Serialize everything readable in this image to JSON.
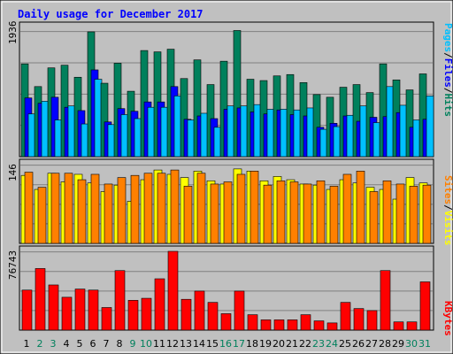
{
  "chart_data": [
    {
      "type": "bar",
      "title": "Daily usage for December 2017",
      "categories": [
        "1",
        "2",
        "3",
        "4",
        "5",
        "6",
        "7",
        "8",
        "9",
        "10",
        "11",
        "12",
        "13",
        "14",
        "15",
        "16",
        "17",
        "18",
        "19",
        "20",
        "21",
        "22",
        "23",
        "24",
        "25",
        "26",
        "27",
        "28",
        "29",
        "30",
        "31"
      ],
      "weekend_days": [
        "2",
        "3",
        "9",
        "10",
        "16",
        "17",
        "23",
        "24",
        "30",
        "31"
      ],
      "ylim": [
        0,
        1936
      ],
      "max_label": "1936",
      "series": [
        {
          "name": "Hits",
          "color": "#00805c",
          "values": [
            1390,
            1050,
            1330,
            1370,
            1190,
            1870,
            1100,
            1400,
            980,
            1590,
            1570,
            1610,
            1170,
            1450,
            1080,
            1430,
            1890,
            1160,
            1140,
            1210,
            1230,
            1110,
            930,
            890,
            1040,
            1080,
            960,
            1390,
            1150,
            1000,
            1240
          ]
        },
        {
          "name": "Files",
          "color": "#0000ff",
          "values": [
            880,
            800,
            890,
            740,
            690,
            1300,
            520,
            720,
            680,
            820,
            820,
            1050,
            560,
            610,
            570,
            710,
            730,
            670,
            640,
            700,
            630,
            610,
            440,
            500,
            610,
            530,
            590,
            600,
            660,
            440,
            560
          ]
        },
        {
          "name": "Pages",
          "color": "#00c0ff",
          "values": [
            640,
            830,
            550,
            760,
            490,
            1160,
            480,
            630,
            570,
            740,
            740,
            910,
            550,
            650,
            440,
            760,
            760,
            780,
            710,
            710,
            700,
            730,
            410,
            450,
            620,
            760,
            510,
            1050,
            770,
            550,
            910
          ]
        }
      ],
      "legend_parts": [
        "Pages",
        "/",
        "Files",
        "/",
        "Hits"
      ],
      "legend_colors": [
        "#00c0ff",
        "#000000",
        "#0000ff",
        "#000000",
        "#00805c"
      ]
    },
    {
      "type": "bar",
      "categories": [
        "1",
        "2",
        "3",
        "4",
        "5",
        "6",
        "7",
        "8",
        "9",
        "10",
        "11",
        "12",
        "13",
        "14",
        "15",
        "16",
        "17",
        "18",
        "19",
        "20",
        "21",
        "22",
        "23",
        "24",
        "25",
        "26",
        "27",
        "28",
        "29",
        "30",
        "31"
      ],
      "ylim": [
        0,
        146
      ],
      "max_label": "146",
      "series": [
        {
          "name": "Visits",
          "color": "#ffff00",
          "values": [
            126,
            100,
            130,
            114,
            128,
            112,
            96,
            108,
            78,
            118,
            136,
            128,
            122,
            134,
            116,
            110,
            138,
            134,
            116,
            124,
            118,
            110,
            108,
            100,
            118,
            112,
            104,
            100,
            82,
            122,
            112
          ]
        },
        {
          "name": "Sites",
          "color": "#ff8000",
          "values": [
            132,
            104,
            130,
            130,
            118,
            128,
            110,
            122,
            126,
            130,
            130,
            136,
            106,
            130,
            110,
            114,
            128,
            134,
            108,
            116,
            114,
            110,
            116,
            106,
            128,
            134,
            96,
            116,
            110,
            106,
            108
          ]
        }
      ],
      "legend_parts": [
        "Sites",
        "/",
        "Visits"
      ],
      "legend_colors": [
        "#ff8000",
        "#000000",
        "#ffff00"
      ]
    },
    {
      "type": "bar",
      "categories": [
        "1",
        "2",
        "3",
        "4",
        "5",
        "6",
        "7",
        "8",
        "9",
        "10",
        "11",
        "12",
        "13",
        "14",
        "15",
        "16",
        "17",
        "18",
        "19",
        "20",
        "21",
        "22",
        "23",
        "24",
        "25",
        "26",
        "27",
        "28",
        "29",
        "30",
        "31"
      ],
      "ylim": [
        0,
        76743
      ],
      "max_label": "76743",
      "series": [
        {
          "name": "KBytes",
          "color": "#ff0000",
          "values": [
            39000,
            60000,
            44000,
            32000,
            40000,
            39000,
            22000,
            58000,
            29000,
            31000,
            50000,
            76743,
            30000,
            38000,
            27000,
            16000,
            38000,
            15000,
            10000,
            10000,
            10000,
            15000,
            9000,
            7000,
            27000,
            21000,
            19000,
            58000,
            8000,
            8000,
            47000
          ]
        }
      ],
      "legend_parts": [
        "KBytes"
      ],
      "legend_colors": [
        "#ff0000"
      ]
    }
  ],
  "colors": {
    "frame_bg": "#c0c0c0",
    "panel_bg": "#c0c0c0",
    "grid": "#808080",
    "title": "#0000ff",
    "weekday_label": "#000000",
    "weekend_label": "#00805c"
  }
}
